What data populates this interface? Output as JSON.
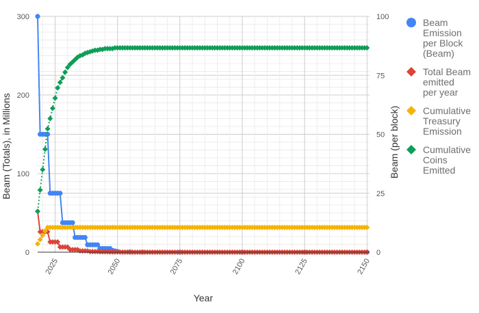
{
  "chart_data": {
    "type": "line",
    "xlabel": "Year",
    "ylabel_left": "Beam  (Totals), in Millions",
    "ylabel_right": "Beam (per block)",
    "xlim": [
      2018,
      2151
    ],
    "ylim_left": [
      0,
      300
    ],
    "ylim_right": [
      0,
      100
    ],
    "x_ticks": [
      "2025",
      "2050",
      "2075",
      "2100",
      "2125",
      "2150"
    ],
    "y_left_ticks": [
      "0",
      "100",
      "200",
      "300"
    ],
    "y_right_ticks": [
      "0",
      "25",
      "50",
      "75",
      "100"
    ],
    "grid": true,
    "legend_position": "right",
    "series": [
      {
        "name": "Beam\nEmission\nper Block\n (Beam)",
        "axis": "right",
        "color": "#4285f4",
        "marker": "circle",
        "line": "solid",
        "x": [
          2018,
          2019,
          2020,
          2021,
          2022,
          2023,
          2024,
          2025,
          2026,
          2027,
          2028,
          2029,
          2030,
          2031,
          2032,
          2033,
          2034,
          2035,
          2036,
          2037,
          2038,
          2039,
          2040,
          2041,
          2042,
          2043,
          2044,
          2045,
          2046,
          2047,
          2048,
          2049,
          2050,
          2055,
          2060,
          2075,
          2100,
          2125,
          2150
        ],
        "values": [
          100,
          50,
          50,
          50,
          50,
          25,
          25,
          25,
          25,
          25,
          12.5,
          12.5,
          12.5,
          12.5,
          12.5,
          6.25,
          6.25,
          6.25,
          6.25,
          6.25,
          3.125,
          3.125,
          3.125,
          3.125,
          3.125,
          1.5625,
          1.5625,
          1.5625,
          1.5625,
          1.5625,
          0.78,
          0.5,
          0.3,
          0.1,
          0.05,
          0,
          0,
          0,
          0
        ]
      },
      {
        "name": "Total Beam\n emitted\nper year",
        "axis": "left",
        "color": "#db4437",
        "marker": "diamond",
        "line": "solid",
        "x": [
          2018,
          2019,
          2020,
          2021,
          2022,
          2023,
          2024,
          2025,
          2026,
          2027,
          2028,
          2029,
          2030,
          2031,
          2032,
          2033,
          2034,
          2035,
          2036,
          2037,
          2038,
          2039,
          2040,
          2041,
          2042,
          2043,
          2044,
          2045,
          2046,
          2047,
          2048,
          2049,
          2050,
          2051,
          2052,
          2053,
          2054,
          2055,
          2056,
          2057,
          2058,
          2059,
          2060,
          2061,
          2062,
          2063,
          2064,
          2065,
          2066,
          2067,
          2068,
          2069,
          2070,
          2071,
          2072,
          2073,
          2074,
          2075,
          2076,
          2077,
          2078,
          2079,
          2080,
          2081,
          2082,
          2083,
          2084,
          2085,
          2086,
          2087,
          2088,
          2089,
          2090,
          2091,
          2092,
          2093,
          2094,
          2095,
          2096,
          2097,
          2098,
          2099,
          2100,
          2101,
          2102,
          2103,
          2104,
          2105,
          2106,
          2107,
          2108,
          2109,
          2110,
          2111,
          2112,
          2113,
          2114,
          2115,
          2116,
          2117,
          2118,
          2119,
          2120,
          2121,
          2122,
          2123,
          2124,
          2125,
          2126,
          2127,
          2128,
          2129,
          2130,
          2131,
          2132,
          2133,
          2134,
          2135,
          2136,
          2137,
          2138,
          2139,
          2140,
          2141,
          2142,
          2143,
          2144,
          2145,
          2146,
          2147,
          2148,
          2149,
          2150
        ],
        "values": [
          52,
          26,
          26,
          26,
          26,
          13,
          13,
          13,
          13,
          6.5,
          6.5,
          6.5,
          6.5,
          3.3,
          3.3,
          3.3,
          3.3,
          1.6,
          1.6,
          1.6,
          1.6,
          0.8,
          0.8,
          0.8,
          0.8,
          0.4,
          0.4,
          0.4,
          0.4,
          0.2,
          0.2,
          0.2,
          0.2,
          0.1,
          0.1,
          0.1,
          0.1,
          0.05,
          0.05,
          0.05,
          0.05,
          0.02,
          0.02,
          0.02,
          0.02,
          0.01,
          0.01,
          0.01,
          0.01,
          0,
          0,
          0,
          0,
          0,
          0,
          0,
          0,
          0,
          0,
          0,
          0,
          0,
          0,
          0,
          0,
          0,
          0,
          0,
          0,
          0,
          0,
          0,
          0,
          0,
          0,
          0,
          0,
          0,
          0,
          0,
          0,
          0,
          0,
          0,
          0,
          0,
          0,
          0,
          0,
          0,
          0,
          0,
          0,
          0,
          0,
          0,
          0,
          0,
          0,
          0,
          0,
          0,
          0,
          0,
          0,
          0,
          0,
          0,
          0,
          0,
          0,
          0,
          0,
          0,
          0,
          0,
          0,
          0,
          0,
          0,
          0,
          0,
          0,
          0,
          0,
          0,
          0,
          0,
          0,
          0,
          0,
          0,
          0
        ]
      },
      {
        "name": "Cumulative\nTreasury\nEmission",
        "axis": "left",
        "color": "#f4b400",
        "marker": "diamond",
        "line": "dotted",
        "x": [
          2018,
          2019,
          2020,
          2021,
          2022,
          2023,
          2024,
          2025,
          2026,
          2027,
          2028,
          2029,
          2030,
          2031,
          2032,
          2033,
          2034,
          2035,
          2036,
          2037,
          2038,
          2039,
          2040,
          2041,
          2042,
          2043,
          2044,
          2045,
          2046,
          2047,
          2048,
          2049,
          2050,
          2051,
          2052,
          2053,
          2054,
          2055,
          2056,
          2057,
          2058,
          2059,
          2060,
          2061,
          2062,
          2063,
          2064,
          2065,
          2066,
          2067,
          2068,
          2069,
          2070,
          2071,
          2072,
          2073,
          2074,
          2075,
          2076,
          2077,
          2078,
          2079,
          2080,
          2081,
          2082,
          2083,
          2084,
          2085,
          2086,
          2087,
          2088,
          2089,
          2090,
          2091,
          2092,
          2093,
          2094,
          2095,
          2096,
          2097,
          2098,
          2099,
          2100,
          2101,
          2102,
          2103,
          2104,
          2105,
          2106,
          2107,
          2108,
          2109,
          2110,
          2111,
          2112,
          2113,
          2114,
          2115,
          2116,
          2117,
          2118,
          2119,
          2120,
          2121,
          2122,
          2123,
          2124,
          2125,
          2126,
          2127,
          2128,
          2129,
          2130,
          2131,
          2132,
          2133,
          2134,
          2135,
          2136,
          2137,
          2138,
          2139,
          2140,
          2141,
          2142,
          2143,
          2144,
          2145,
          2146,
          2147,
          2148,
          2149,
          2150
        ],
        "values": [
          10.5,
          16,
          21.5,
          27,
          31.5,
          31.5,
          31.5,
          31.5,
          31.5,
          31.5,
          31.5,
          31.5,
          31.5,
          31.5,
          31.5,
          31.5,
          31.5,
          31.5,
          31.5,
          31.5,
          31.5,
          31.5,
          31.5,
          31.5,
          31.5,
          31.5,
          31.5,
          31.5,
          31.5,
          31.5,
          31.5,
          31.5,
          31.5,
          31.5,
          31.5,
          31.5,
          31.5,
          31.5,
          31.5,
          31.5,
          31.5,
          31.5,
          31.5,
          31.5,
          31.5,
          31.5,
          31.5,
          31.5,
          31.5,
          31.5,
          31.5,
          31.5,
          31.5,
          31.5,
          31.5,
          31.5,
          31.5,
          31.5,
          31.5,
          31.5,
          31.5,
          31.5,
          31.5,
          31.5,
          31.5,
          31.5,
          31.5,
          31.5,
          31.5,
          31.5,
          31.5,
          31.5,
          31.5,
          31.5,
          31.5,
          31.5,
          31.5,
          31.5,
          31.5,
          31.5,
          31.5,
          31.5,
          31.5,
          31.5,
          31.5,
          31.5,
          31.5,
          31.5,
          31.5,
          31.5,
          31.5,
          31.5,
          31.5,
          31.5,
          31.5,
          31.5,
          31.5,
          31.5,
          31.5,
          31.5,
          31.5,
          31.5,
          31.5,
          31.5,
          31.5,
          31.5,
          31.5,
          31.5,
          31.5,
          31.5,
          31.5,
          31.5,
          31.5,
          31.5,
          31.5,
          31.5,
          31.5,
          31.5,
          31.5,
          31.5,
          31.5,
          31.5,
          31.5,
          31.5,
          31.5,
          31.5,
          31.5,
          31.5,
          31.5,
          31.5,
          31.5,
          31.5,
          31.5
        ]
      },
      {
        "name": "Cumulative\nCoins\nEmitted",
        "axis": "left",
        "color": "#0f9d58",
        "marker": "diamond",
        "line": "dotted",
        "x": [
          2018,
          2019,
          2020,
          2021,
          2022,
          2023,
          2024,
          2025,
          2026,
          2027,
          2028,
          2029,
          2030,
          2031,
          2032,
          2033,
          2034,
          2035,
          2036,
          2037,
          2038,
          2039,
          2040,
          2041,
          2042,
          2043,
          2044,
          2045,
          2046,
          2047,
          2048,
          2049,
          2050,
          2051,
          2052,
          2053,
          2054,
          2055,
          2056,
          2057,
          2058,
          2059,
          2060,
          2061,
          2062,
          2063,
          2064,
          2065,
          2066,
          2067,
          2068,
          2069,
          2070,
          2071,
          2072,
          2073,
          2074,
          2075,
          2076,
          2077,
          2078,
          2079,
          2080,
          2081,
          2082,
          2083,
          2084,
          2085,
          2086,
          2087,
          2088,
          2089,
          2090,
          2091,
          2092,
          2093,
          2094,
          2095,
          2096,
          2097,
          2098,
          2099,
          2100,
          2101,
          2102,
          2103,
          2104,
          2105,
          2106,
          2107,
          2108,
          2109,
          2110,
          2111,
          2112,
          2113,
          2114,
          2115,
          2116,
          2117,
          2118,
          2119,
          2120,
          2121,
          2122,
          2123,
          2124,
          2125,
          2126,
          2127,
          2128,
          2129,
          2130,
          2131,
          2132,
          2133,
          2134,
          2135,
          2136,
          2137,
          2138,
          2139,
          2140,
          2141,
          2142,
          2143,
          2144,
          2145,
          2146,
          2147,
          2148,
          2149,
          2150
        ],
        "values": [
          52,
          79,
          105,
          131,
          157,
          170,
          183,
          196,
          209,
          216,
          222,
          229,
          235,
          239,
          242,
          245,
          248,
          250,
          251,
          253,
          254,
          255,
          256,
          257,
          257,
          258,
          258,
          259,
          259,
          259,
          259,
          260,
          260,
          260,
          260,
          260,
          260,
          260,
          260,
          260,
          260,
          260,
          260,
          260,
          260,
          260,
          260,
          260,
          260,
          260,
          260,
          260,
          260,
          260,
          260,
          260,
          260,
          260,
          260,
          260,
          260,
          260,
          260,
          260,
          260,
          260,
          260,
          260,
          260,
          260,
          260,
          260,
          260,
          260,
          260,
          260,
          260,
          260,
          260,
          260,
          260,
          260,
          260,
          260,
          260,
          260,
          260,
          260,
          260,
          260,
          260,
          260,
          260,
          260,
          260,
          260,
          260,
          260,
          260,
          260,
          260,
          260,
          260,
          260,
          260,
          260,
          260,
          260,
          260,
          260,
          260,
          260,
          260,
          260,
          260,
          260,
          260,
          260,
          260,
          260,
          260,
          260,
          260,
          260,
          260,
          260,
          260,
          260,
          260,
          260,
          260,
          260,
          260
        ]
      }
    ]
  }
}
